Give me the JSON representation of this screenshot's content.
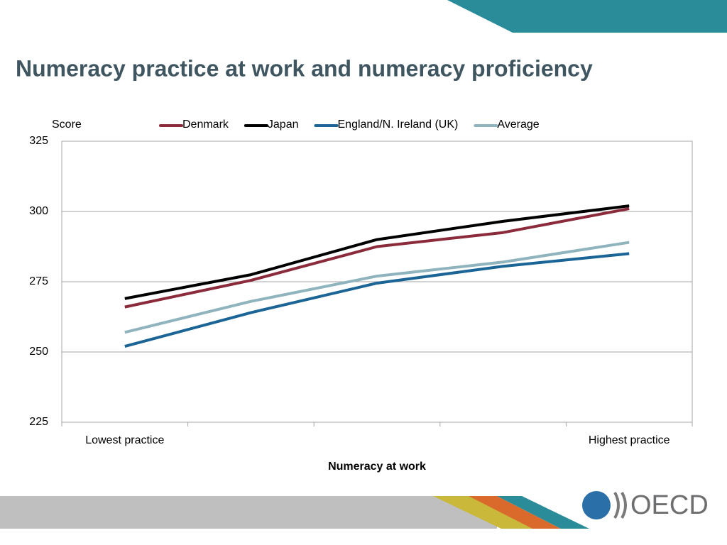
{
  "chart_data": {
    "type": "line",
    "title": "Numeracy practice at work and numeracy proficiency",
    "y_label": "Score",
    "x_label": "Numeracy at work",
    "categories": [
      "Lowest practice",
      null,
      null,
      null,
      "Highest practice"
    ],
    "series": [
      {
        "name": "Denmark",
        "color": "#8b2a3a",
        "values": [
          266,
          275.5,
          287.5,
          292.5,
          301
        ]
      },
      {
        "name": "Japan",
        "color": "#000000",
        "values": [
          269,
          277.5,
          290,
          296.5,
          302
        ]
      },
      {
        "name": "England/N. Ireland (UK)",
        "color": "#1a6496",
        "values": [
          252,
          264,
          274.5,
          280.5,
          285
        ]
      },
      {
        "name": "Average",
        "color": "#8fb4bd",
        "values": [
          257,
          268,
          277,
          282,
          289
        ]
      }
    ],
    "ylim": [
      225,
      325
    ],
    "yticks": [
      225,
      250,
      275,
      300,
      325
    ],
    "grid": true
  },
  "logo": {
    "text": "OECD"
  }
}
